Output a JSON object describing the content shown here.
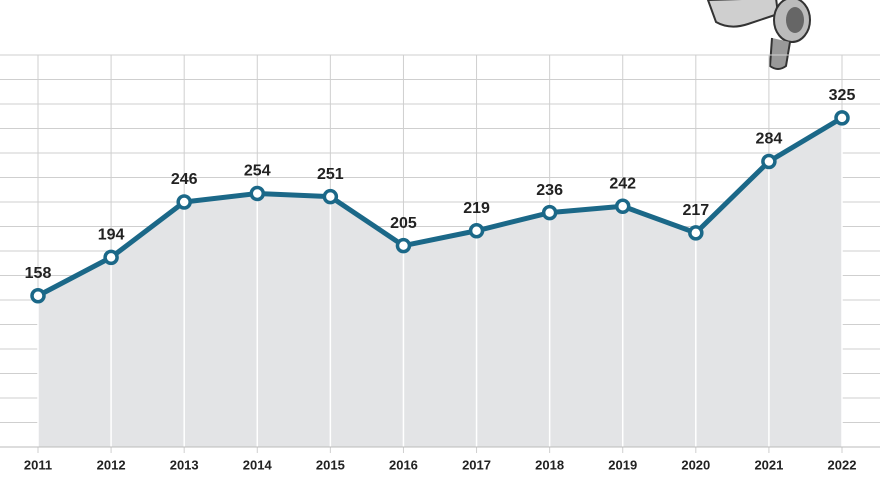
{
  "chart_data": {
    "type": "area-line",
    "categories": [
      "2011",
      "2012",
      "2013",
      "2014",
      "2015",
      "2016",
      "2017",
      "2018",
      "2019",
      "2020",
      "2021",
      "2022"
    ],
    "values": [
      158,
      194,
      246,
      254,
      251,
      205,
      219,
      236,
      242,
      217,
      284,
      325
    ],
    "color": "#1b6888",
    "area_color": "#e3e4e6",
    "ylim": [
      16,
      384
    ],
    "yticks": [
      16,
      39,
      62,
      85,
      108,
      131,
      154,
      177,
      200,
      223,
      246,
      269,
      292,
      315,
      338,
      361,
      384
    ],
    "grid": true
  }
}
